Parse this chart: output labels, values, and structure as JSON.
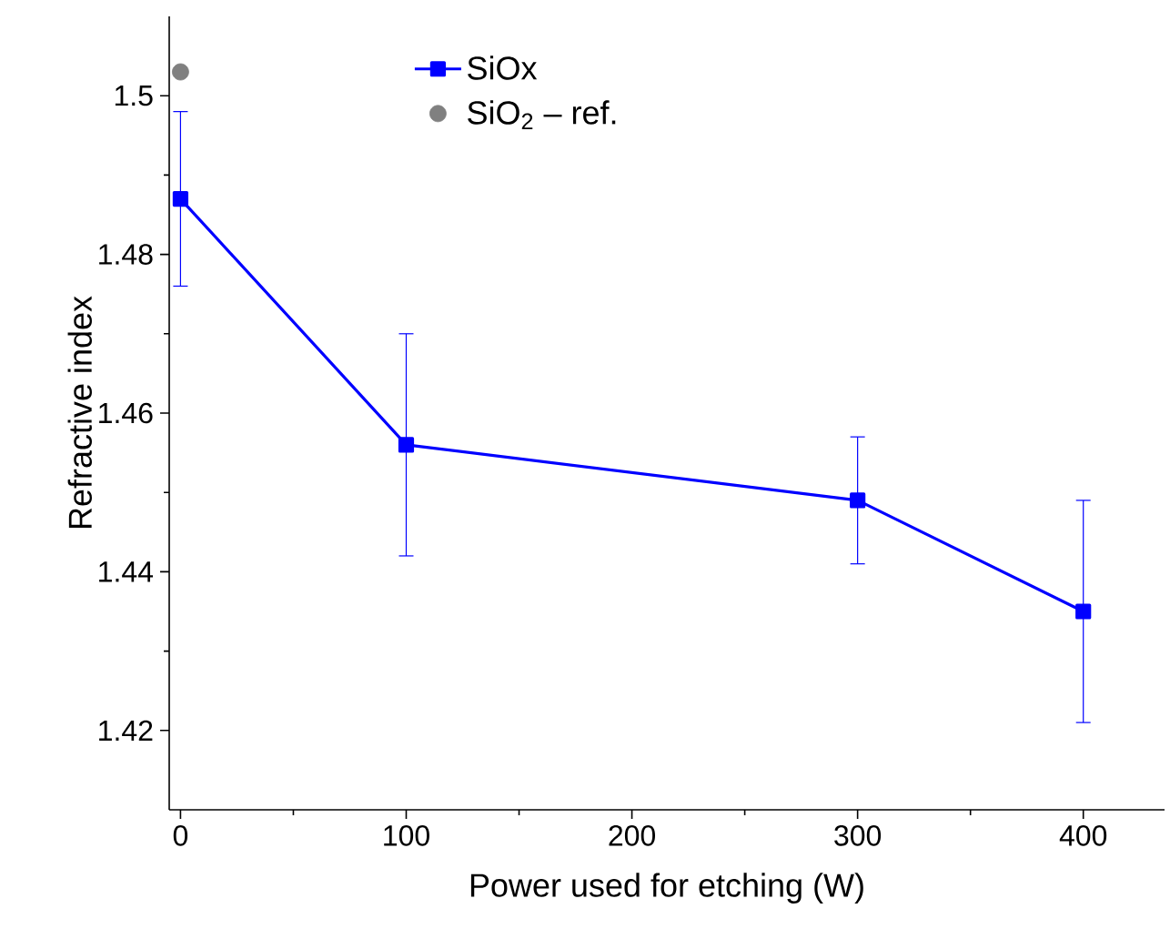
{
  "chart_data": {
    "type": "line",
    "xlabel": "Power used for etching (W)",
    "ylabel": "Refractive index",
    "xlim": [
      -5,
      436
    ],
    "xticks": [
      0,
      100,
      200,
      300,
      400
    ],
    "ylim": [
      1.41,
      1.51
    ],
    "yticks": [
      1.42,
      1.44,
      1.46,
      1.48,
      1.5
    ],
    "legend": "top",
    "grid": false,
    "series": [
      {
        "name": "SiOx",
        "marker": "square",
        "line_style": "solid",
        "color": "#0000ff",
        "x": [
          0,
          100,
          300,
          400
        ],
        "values": [
          1.487,
          1.456,
          1.449,
          1.435
        ],
        "errors": [
          [
            1.476,
            1.498
          ],
          [
            1.442,
            1.47
          ],
          [
            1.441,
            1.457
          ],
          [
            1.421,
            1.449
          ]
        ]
      },
      {
        "name": "SiO$_{2}$ – ref.",
        "type": "scatter",
        "marker": "circle",
        "color": "#808080",
        "x": [
          0
        ],
        "values": [
          1.503
        ]
      }
    ]
  }
}
